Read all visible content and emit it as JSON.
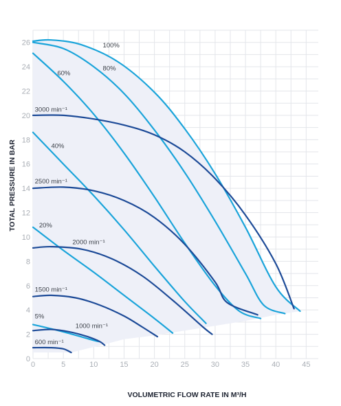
{
  "chart_data": {
    "type": "line",
    "xlabel": "VOLUMETRIC FLOW RATE IN M³/H",
    "ylabel": "TOTAL PRESSURE IN BAR",
    "xlim": [
      0,
      47
    ],
    "ylim": [
      0,
      27
    ],
    "xticks": [
      "0",
      "5",
      "10",
      "15",
      "20",
      "25",
      "30",
      "35",
      "40",
      "45"
    ],
    "yticks": [
      "0",
      "2",
      "4",
      "6",
      "8",
      "10",
      "12",
      "14",
      "16",
      "18",
      "20",
      "22",
      "24",
      "26"
    ],
    "grid": true,
    "envelope": {
      "color": "#eef0f8",
      "points": [
        [
          0,
          26.1
        ],
        [
          3,
          26.2
        ],
        [
          8,
          25.8
        ],
        [
          14,
          24.4
        ],
        [
          20,
          21.9
        ],
        [
          25,
          18.9
        ],
        [
          30,
          15.2
        ],
        [
          35,
          10.8
        ],
        [
          40,
          5.9
        ],
        [
          44,
          3.9
        ],
        [
          40,
          3.6
        ],
        [
          35,
          3.1
        ],
        [
          30,
          2.7
        ],
        [
          25,
          2.3
        ],
        [
          20,
          1.9
        ],
        [
          15,
          1.6
        ],
        [
          12,
          1.2
        ],
        [
          6.3,
          0.5
        ]
      ]
    },
    "series": [
      {
        "name": "100%",
        "color": "#1aa4da",
        "points": [
          [
            0,
            26.1
          ],
          [
            3,
            26.2
          ],
          [
            8,
            25.8
          ],
          [
            14,
            24.4
          ],
          [
            20,
            21.9
          ],
          [
            25,
            18.9
          ],
          [
            30,
            15.2
          ],
          [
            35,
            10.8
          ],
          [
            40,
            5.9
          ],
          [
            44,
            3.9
          ]
        ]
      },
      {
        "name": "80%",
        "color": "#1aa4da",
        "points": [
          [
            0,
            26.0
          ],
          [
            5,
            25.5
          ],
          [
            10,
            24.0
          ],
          [
            15,
            21.8
          ],
          [
            20,
            18.8
          ],
          [
            25,
            15.3
          ],
          [
            30,
            11.3
          ],
          [
            35,
            7.0
          ],
          [
            38,
            4.4
          ],
          [
            41.5,
            3.7
          ]
        ]
      },
      {
        "name": "60%",
        "color": "#1aa4da",
        "points": [
          [
            0,
            25.1
          ],
          [
            5,
            22.8
          ],
          [
            10,
            20.1
          ],
          [
            15,
            16.9
          ],
          [
            20,
            13.3
          ],
          [
            25,
            9.5
          ],
          [
            30,
            6.0
          ],
          [
            34,
            3.9
          ],
          [
            37.5,
            3.3
          ]
        ]
      },
      {
        "name": "40%",
        "color": "#1aa4da",
        "points": [
          [
            0,
            18.6
          ],
          [
            5,
            16.0
          ],
          [
            10,
            13.4
          ],
          [
            15,
            10.6
          ],
          [
            20,
            7.6
          ],
          [
            25,
            4.7
          ],
          [
            28.5,
            2.9
          ]
        ]
      },
      {
        "name": "20%",
        "color": "#1aa4da",
        "points": [
          [
            0,
            10.8
          ],
          [
            5,
            8.9
          ],
          [
            10,
            7.1
          ],
          [
            15,
            5.2
          ],
          [
            20,
            3.3
          ],
          [
            23,
            2.1
          ]
        ]
      },
      {
        "name": "5%",
        "color": "#1aa4da",
        "points": [
          [
            0,
            2.8
          ],
          [
            5,
            2.2
          ],
          [
            10,
            1.5
          ],
          [
            11,
            1.4
          ]
        ]
      },
      {
        "name": "3000 min⁻¹",
        "color": "#1c4a97",
        "points": [
          [
            0,
            20.0
          ],
          [
            5,
            20.0
          ],
          [
            10,
            19.7
          ],
          [
            15,
            19.2
          ],
          [
            20,
            18.4
          ],
          [
            25,
            17.0
          ],
          [
            30,
            14.8
          ],
          [
            35,
            11.8
          ],
          [
            40,
            7.8
          ],
          [
            43,
            4.1
          ]
        ]
      },
      {
        "name": "2500 min⁻¹",
        "color": "#1c4a97",
        "points": [
          [
            0,
            14.0
          ],
          [
            5,
            14.1
          ],
          [
            10,
            13.8
          ],
          [
            15,
            13.0
          ],
          [
            20,
            11.6
          ],
          [
            25,
            9.4
          ],
          [
            30,
            6.3
          ],
          [
            32,
            4.6
          ],
          [
            37,
            3.6
          ]
        ]
      },
      {
        "name": "2000 min⁻¹",
        "color": "#1c4a97",
        "points": [
          [
            0,
            9.1
          ],
          [
            3,
            9.2
          ],
          [
            8,
            9.0
          ],
          [
            13,
            8.2
          ],
          [
            18,
            6.8
          ],
          [
            23,
            4.8
          ],
          [
            28,
            2.6
          ],
          [
            29.5,
            2.0
          ]
        ]
      },
      {
        "name": "1500 min⁻¹",
        "color": "#1c4a97",
        "points": [
          [
            0,
            5.1
          ],
          [
            3,
            5.2
          ],
          [
            7,
            5.0
          ],
          [
            11,
            4.4
          ],
          [
            15,
            3.5
          ],
          [
            18,
            2.6
          ],
          [
            20.5,
            1.8
          ]
        ]
      },
      {
        "name": "1000 min⁻¹",
        "color": "#1c4a97",
        "points": [
          [
            0,
            2.3
          ],
          [
            3,
            2.4
          ],
          [
            6,
            2.2
          ],
          [
            9,
            1.8
          ],
          [
            11,
            1.4
          ],
          [
            11.8,
            1.1
          ]
        ]
      },
      {
        "name": "600 min⁻¹",
        "color": "#1c4a97",
        "points": [
          [
            0,
            0.9
          ],
          [
            3,
            0.9
          ],
          [
            5,
            0.8
          ],
          [
            6.3,
            0.5
          ]
        ]
      }
    ],
    "curve_labels": [
      {
        "text": "100%",
        "x": 11.5,
        "y": 25.6
      },
      {
        "text": "80%",
        "x": 11.5,
        "y": 23.7
      },
      {
        "text": "60%",
        "x": 4.0,
        "y": 23.3
      },
      {
        "text": "40%",
        "x": 3.0,
        "y": 17.3
      },
      {
        "text": "20%",
        "x": 1.0,
        "y": 10.8
      },
      {
        "text": "5%",
        "x": 0.3,
        "y": 3.3
      },
      {
        "text": "3000 min⁻¹",
        "x": 0.3,
        "y": 20.3
      },
      {
        "text": "2500 min⁻¹",
        "x": 0.3,
        "y": 14.4
      },
      {
        "text": "2000 min⁻¹",
        "x": 6.5,
        "y": 9.4
      },
      {
        "text": "1500 min⁻¹",
        "x": 0.3,
        "y": 5.5
      },
      {
        "text": "1000 min⁻¹",
        "x": 7.0,
        "y": 2.5
      },
      {
        "text": "600 min⁻¹",
        "x": 0.3,
        "y": 1.2
      }
    ]
  }
}
